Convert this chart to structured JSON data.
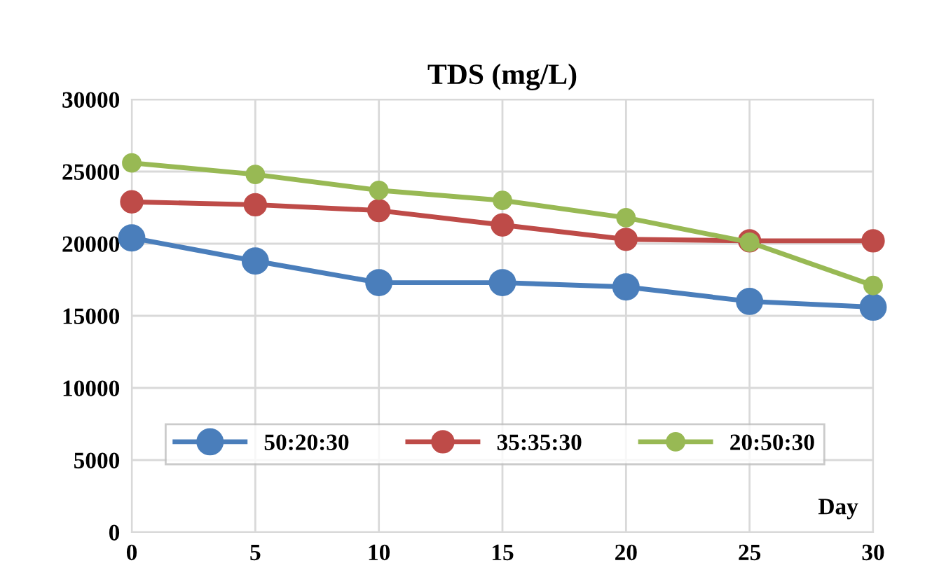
{
  "chart_data": {
    "type": "line",
    "title": "TDS (mg/L)",
    "xlabel": "Day",
    "x": [
      0,
      5,
      10,
      15,
      20,
      25,
      30
    ],
    "series": [
      {
        "name": "50:20:30",
        "color": "#4a7ebb",
        "values": [
          20400,
          18800,
          17300,
          17300,
          17000,
          16000,
          15600
        ]
      },
      {
        "name": "35:35:30",
        "color": "#be4b48",
        "values": [
          22900,
          22700,
          22300,
          21300,
          20300,
          20200,
          20200
        ]
      },
      {
        "name": "20:50:30",
        "color": "#98b954",
        "values": [
          25600,
          24800,
          23700,
          23000,
          21800,
          20100,
          17100
        ]
      }
    ],
    "xlim": [
      0,
      30
    ],
    "xticks": [
      0,
      5,
      10,
      15,
      20,
      25,
      30
    ],
    "ylim": [
      0,
      30000
    ],
    "yticks": [
      0,
      5000,
      10000,
      15000,
      20000,
      25000,
      30000
    ],
    "grid": true,
    "legend": "bottom left",
    "marker": "circle",
    "line_style": "solid"
  }
}
